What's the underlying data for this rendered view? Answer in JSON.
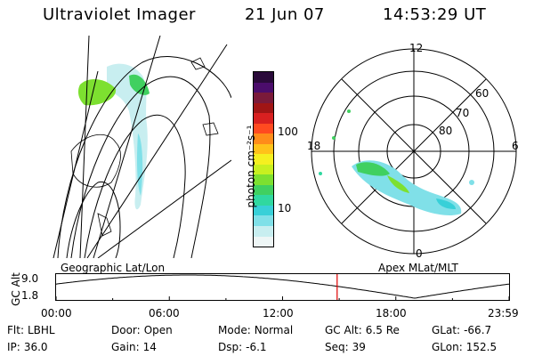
{
  "header": {
    "instrument": "Ultraviolet Imager",
    "date": "21 Jun 07",
    "time": "14:53:29 UT"
  },
  "colorbar": {
    "label": "photon cm⁻²s⁻¹",
    "ticks": [
      "100",
      "10"
    ],
    "colors": [
      "#2a0a3a",
      "#4b0d6b",
      "#7a1a3a",
      "#a01515",
      "#d82020",
      "#ff4a20",
      "#ff8c1a",
      "#ffc21a",
      "#f5f020",
      "#c8f020",
      "#7de030",
      "#40d060",
      "#30d8a0",
      "#38d0d8",
      "#80e0e8",
      "#c8eef0",
      "#eef6f6"
    ]
  },
  "polar_plot": {
    "mlt_labels": {
      "top": "12",
      "bottom": "0",
      "left": "18",
      "right": "6"
    },
    "mlat_labels": [
      "60",
      "70",
      "80"
    ]
  },
  "timeline": {
    "left_caption": "Geographic Lat/Lon",
    "right_caption": "Apex MLat/MLT",
    "yaxis_label": "GC Alt",
    "y_ticks": [
      "9.0",
      "1.8"
    ],
    "time_ticks": [
      "00:00",
      "06:00",
      "12:00",
      "18:00",
      "23:59"
    ],
    "current_time_hours": 14.89
  },
  "info_rows": [
    [
      {
        "label": "Flt:",
        "value": "LBHL"
      },
      {
        "label": "Door:",
        "value": "Open"
      },
      {
        "label": "Mode:",
        "value": "Normal"
      },
      {
        "label": "GC Alt:",
        "value": "6.5 Re"
      },
      {
        "label": "GLat:",
        "value": "-66.7"
      }
    ],
    [
      {
        "label": "IP:",
        "value": "36.0"
      },
      {
        "label": "Gain:",
        "value": "14"
      },
      {
        "label": "Dsp:",
        "value": "-6.1"
      },
      {
        "label": "Seq:",
        "value": "39"
      },
      {
        "label": "GLon:",
        "value": "152.5"
      }
    ]
  ]
}
